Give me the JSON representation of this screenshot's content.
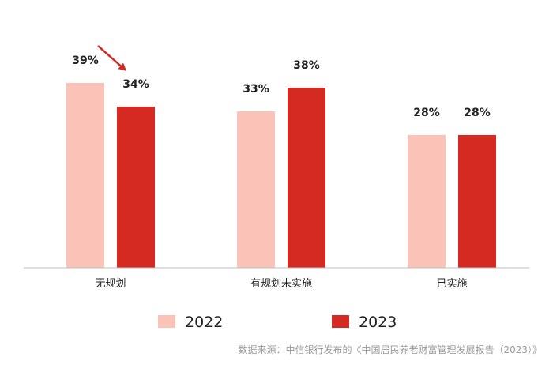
{
  "chart_data": {
    "type": "bar",
    "title": "",
    "xlabel": "",
    "ylabel": "",
    "ylim": [
      0,
      45
    ],
    "grid": false,
    "categories": [
      "无规划",
      "有规划未实施",
      "已实施"
    ],
    "series": [
      {
        "name": "2022",
        "color": "#fbc3b7",
        "values": [
          39,
          33,
          28
        ]
      },
      {
        "name": "2023",
        "color": "#d42a22",
        "values": [
          34,
          38,
          28
        ]
      }
    ],
    "value_suffix": "%",
    "legend_position": "bottom",
    "annotation": {
      "type": "arrow",
      "color": "#d42a22",
      "description": "decrease from 2022 to 2023 in 无规划"
    },
    "source": "数据来源：中信银行发布的《中国居民养老财富管理发展报告（2023）》"
  }
}
